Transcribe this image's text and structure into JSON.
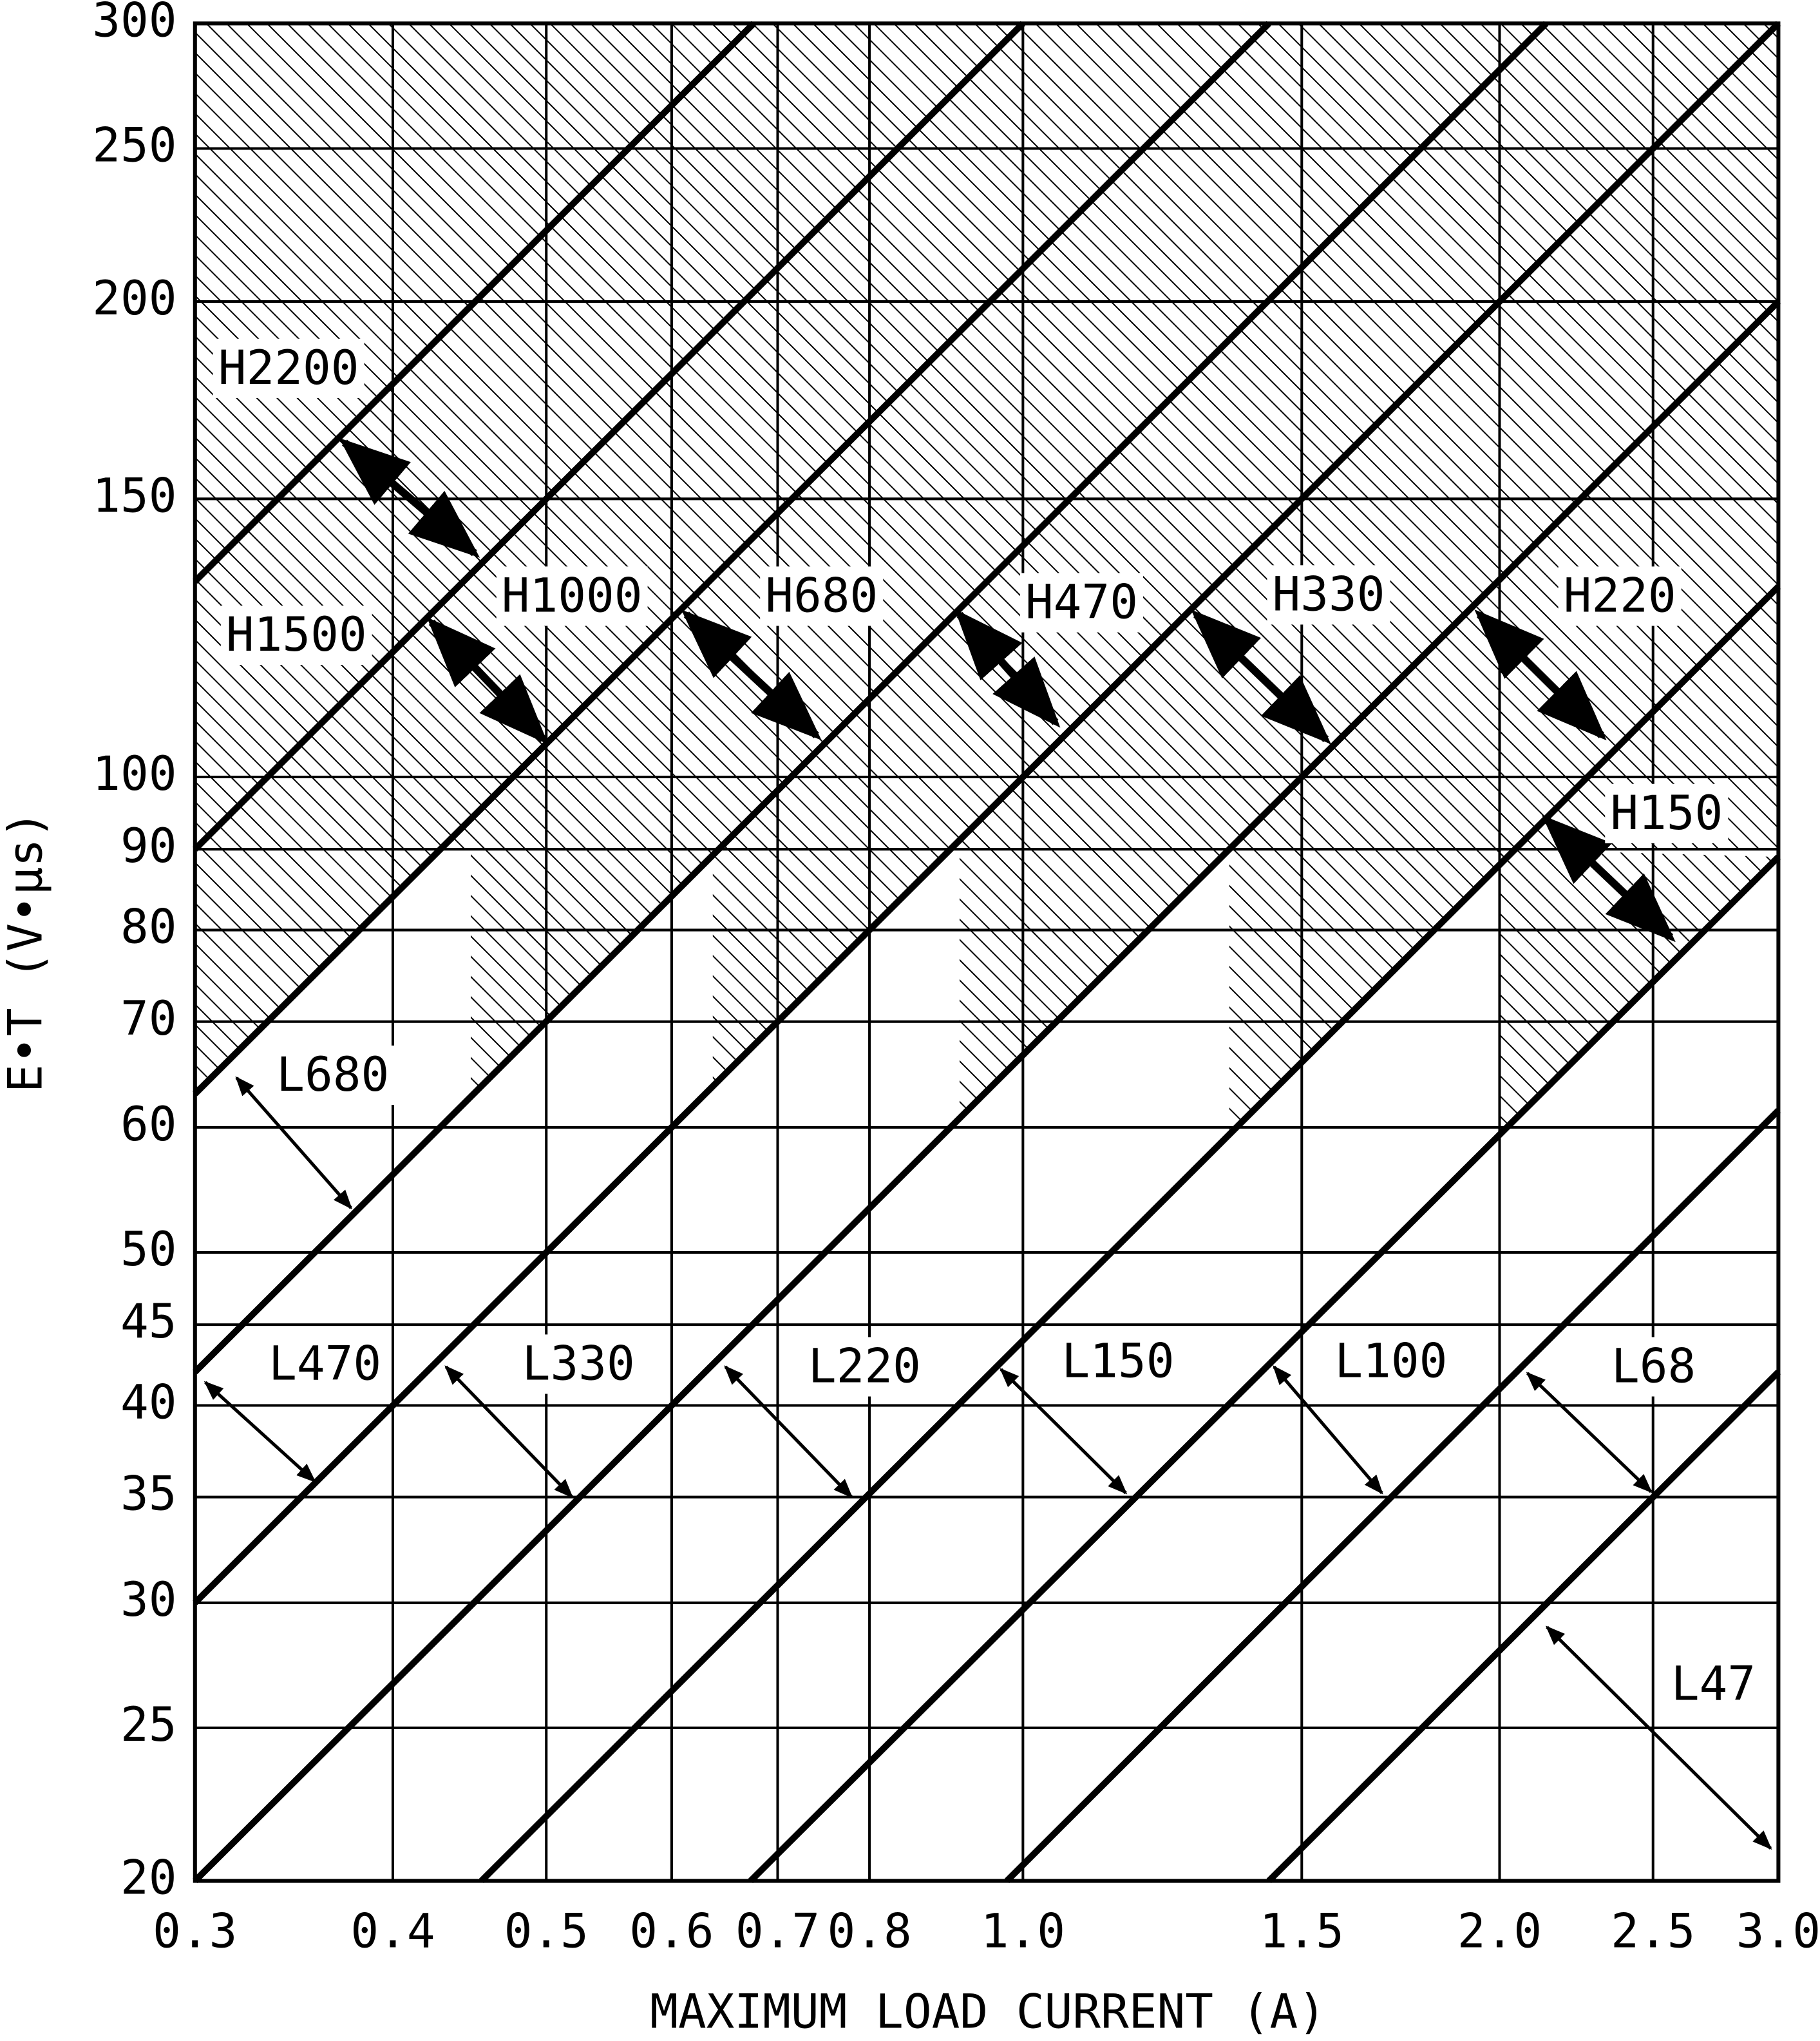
{
  "chart_data": {
    "type": "line",
    "x_label": "MAXIMUM LOAD CURRENT (A)",
    "y_label": "E•T (V•μs)",
    "x_log": true,
    "y_log": true,
    "grid": true,
    "color": "#000000",
    "xlim": [
      0.3,
      3.0
    ],
    "ylim": [
      20,
      300
    ],
    "xticks": [
      0.3,
      0.4,
      0.5,
      0.6,
      0.7,
      0.8,
      {
        "value": 1.0,
        "label": "1.0"
      },
      1.5,
      {
        "value": 2.0,
        "label": "2.0"
      },
      2.5,
      {
        "value": 3.0,
        "label": "3.0"
      }
    ],
    "yticks": [
      20,
      25,
      30,
      35,
      40,
      45,
      50,
      60,
      70,
      80,
      90,
      100,
      150,
      200,
      250,
      300
    ],
    "series": [
      {
        "x": [
          0.3,
          0.676
        ],
        "values": [
          133,
          300
        ]
      },
      {
        "x": [
          0.3,
          1.0
        ],
        "values": [
          90,
          300
        ]
      },
      {
        "x": [
          0.3,
          1.43
        ],
        "values": [
          63,
          300
        ]
      },
      {
        "x": [
          0.3,
          2.14
        ],
        "values": [
          42,
          300
        ]
      },
      {
        "x": [
          0.3,
          3.0
        ],
        "values": [
          30,
          300
        ]
      },
      {
        "x": [
          0.3,
          3.0
        ],
        "values": [
          20,
          200
        ]
      },
      {
        "x": [
          0.455,
          3.0
        ],
        "values": [
          20,
          132
        ]
      },
      {
        "x": [
          0.673,
          3.0
        ],
        "values": [
          20,
          89
        ]
      },
      {
        "x": [
          0.977,
          3.0
        ],
        "values": [
          20,
          61.5
        ]
      },
      {
        "x": [
          1.43,
          3.0
        ],
        "values": [
          20,
          42
        ]
      }
    ],
    "shaded_regions": [
      {
        "x": [
          0.3,
          0.3,
          3.0,
          3.0
        ],
        "values": [
          90,
          300,
          300,
          90
        ]
      },
      {
        "x": [
          0.3,
          0.3,
          0.43
        ],
        "values": [
          90,
          63,
          90
        ]
      },
      {
        "x": [
          0.448,
          0.448,
          0.643
        ],
        "values": [
          90,
          62.7,
          90
        ]
      },
      {
        "x": [
          0.637,
          0.637,
          0.9
        ],
        "values": [
          90,
          63.7,
          90
        ]
      },
      {
        "x": [
          0.912,
          0.912,
          1.35
        ],
        "values": [
          90,
          60.8,
          90
        ]
      },
      {
        "x": [
          1.35,
          1.35,
          2.05
        ],
        "values": [
          90,
          59.4,
          90
        ]
      },
      {
        "x": [
          2.0,
          2.0,
          3.0
        ],
        "values": [
          90,
          59.4,
          89
        ]
      }
    ],
    "annotations": [
      "H2200",
      "H1500",
      "H1000",
      "H680",
      "H470",
      "H330",
      "H220",
      "H150",
      "L680",
      "L470",
      "L330",
      "L220",
      "L150",
      "L100",
      "L68",
      "L47"
    ]
  }
}
